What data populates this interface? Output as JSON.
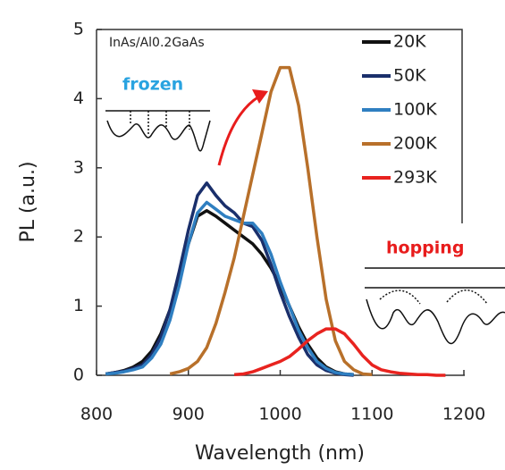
{
  "chart_data": {
    "type": "line",
    "ylabel": "PL (a.u.)",
    "xlabel": "Wavelength (nm)",
    "annotations": [
      "InAs/Al0.2GaAs",
      "frozen",
      "hopping"
    ],
    "xlim": [
      800,
      1200
    ],
    "xticks": [
      800,
      900,
      1000,
      1100,
      1200
    ],
    "ylim": [
      0,
      5
    ],
    "yticks": [
      0,
      1,
      2,
      3,
      4,
      5
    ],
    "x": [
      800,
      810,
      820,
      830,
      840,
      850,
      860,
      870,
      880,
      890,
      900,
      910,
      920,
      930,
      940,
      950,
      960,
      970,
      980,
      990,
      1000,
      1010,
      1020,
      1030,
      1040,
      1050,
      1060,
      1070,
      1080,
      1090,
      1100,
      1110,
      1120,
      1130,
      1140,
      1150,
      1160,
      1170,
      1180
    ],
    "series": [
      {
        "name": "20K",
        "color": "#111111",
        "values": [
          null,
          0.02,
          0.04,
          0.07,
          0.12,
          0.2,
          0.35,
          0.6,
          0.95,
          1.4,
          1.9,
          2.3,
          2.38,
          2.3,
          2.2,
          2.1,
          2.0,
          1.9,
          1.75,
          1.55,
          1.3,
          1.0,
          0.7,
          0.45,
          0.25,
          0.12,
          0.05,
          0.02,
          0.01,
          null,
          null,
          null,
          null,
          null,
          null,
          null,
          null,
          null,
          null
        ]
      },
      {
        "name": "50K",
        "color": "#1a2f6b",
        "values": [
          null,
          0.02,
          0.04,
          0.06,
          0.1,
          0.15,
          0.3,
          0.55,
          0.95,
          1.5,
          2.1,
          2.6,
          2.78,
          2.6,
          2.45,
          2.35,
          2.2,
          2.15,
          1.95,
          1.6,
          1.2,
          0.85,
          0.55,
          0.3,
          0.15,
          0.07,
          0.03,
          0.01,
          0.0,
          null,
          null,
          null,
          null,
          null,
          null,
          null,
          null,
          null,
          null
        ]
      },
      {
        "name": "100K",
        "color": "#2f7fc1",
        "values": [
          null,
          0.02,
          0.03,
          0.05,
          0.08,
          0.12,
          0.25,
          0.45,
          0.8,
          1.3,
          1.9,
          2.35,
          2.5,
          2.4,
          2.3,
          2.25,
          2.2,
          2.2,
          2.05,
          1.75,
          1.35,
          1.0,
          0.65,
          0.4,
          0.2,
          0.1,
          0.04,
          0.02,
          0.01,
          null,
          null,
          null,
          null,
          null,
          null,
          null,
          null,
          null,
          null
        ]
      },
      {
        "name": "200K",
        "color": "#b8702a",
        "values": [
          null,
          null,
          null,
          null,
          null,
          null,
          null,
          null,
          0.02,
          0.05,
          0.1,
          0.2,
          0.4,
          0.75,
          1.2,
          1.7,
          2.3,
          2.9,
          3.5,
          4.1,
          4.45,
          4.45,
          3.9,
          3.0,
          2.0,
          1.1,
          0.5,
          0.2,
          0.08,
          0.02,
          0.01,
          null,
          null,
          null,
          null,
          null,
          null,
          null,
          null
        ]
      },
      {
        "name": "293K",
        "color": "#e8231f",
        "values": [
          null,
          null,
          null,
          null,
          null,
          null,
          null,
          null,
          null,
          null,
          null,
          null,
          null,
          null,
          null,
          0.01,
          0.02,
          0.05,
          0.1,
          0.15,
          0.2,
          0.27,
          0.38,
          0.5,
          0.6,
          0.67,
          0.67,
          0.6,
          0.45,
          0.28,
          0.15,
          0.08,
          0.05,
          0.03,
          0.02,
          0.01,
          0.01,
          0.0,
          0.0
        ]
      }
    ]
  }
}
